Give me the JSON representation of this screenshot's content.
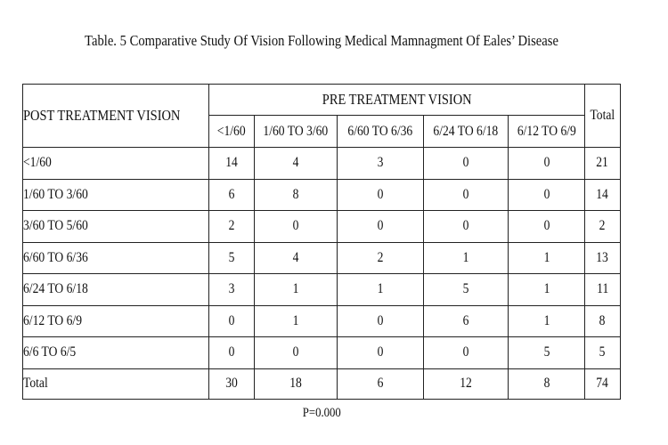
{
  "title": "Table. 5  Comparative Study Of Vision Following Medical Mamnagment Of Eales’ Disease",
  "table": {
    "corner_label": "POST TREATMENT VISION",
    "group_label": "PRE TREATMENT VISION",
    "total_label": "Total",
    "columns": [
      "<1/60",
      "1/60 TO 3/60",
      "6/60 TO 6/36",
      "6/24 TO 6/18",
      "6/12 TO 6/9"
    ],
    "rows": [
      {
        "label": "<1/60",
        "values": [
          "14",
          "4",
          "3",
          "0",
          "0"
        ],
        "total": "21"
      },
      {
        "label": "1/60 TO 3/60",
        "values": [
          "6",
          "8",
          "0",
          "0",
          "0"
        ],
        "total": "14"
      },
      {
        "label": "3/60 TO 5/60",
        "values": [
          "2",
          "0",
          "0",
          "0",
          "0"
        ],
        "total": "2"
      },
      {
        "label": "6/60 TO 6/36",
        "values": [
          "5",
          "4",
          "2",
          "1",
          "1"
        ],
        "total": "13"
      },
      {
        "label": "6/24 TO 6/18",
        "values": [
          "3",
          "1",
          "1",
          "5",
          "1"
        ],
        "total": "11"
      },
      {
        "label": "6/12 TO 6/9",
        "values": [
          "0",
          "1",
          "0",
          "6",
          "1"
        ],
        "total": "8"
      },
      {
        "label": "6/6 TO 6/5",
        "values": [
          "0",
          "0",
          "0",
          "0",
          "5"
        ],
        "total": "5"
      }
    ],
    "totals_row": {
      "label": "Total",
      "values": [
        "30",
        "18",
        "6",
        "12",
        "8"
      ],
      "total": "74"
    }
  },
  "p_value": "P=0.000"
}
